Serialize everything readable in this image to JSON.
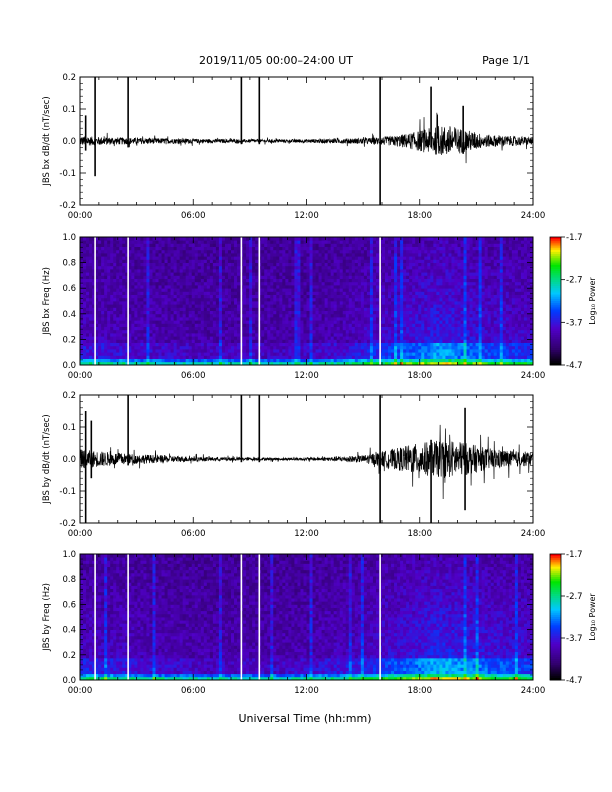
{
  "header": {
    "title": "2019/11/05  00:00–24:00 UT",
    "page": "Page 1/1"
  },
  "xaxis_title": "Universal Time (hh:mm)",
  "chart_data": [
    {
      "type": "line",
      "ylabel": "JBS bx dB/dt (nT/sec)",
      "xlim": [
        0,
        24
      ],
      "ylim": [
        -0.2,
        0.2
      ],
      "x_ticks": [
        "00:00",
        "06:00",
        "12:00",
        "18:00",
        "24:00"
      ],
      "y_ticks": [
        "-0.2",
        "-0.1",
        "0.0",
        "0.1",
        "0.2"
      ],
      "envelope": [
        {
          "t": 0,
          "amp": 0.015
        },
        {
          "t": 1.5,
          "amp": 0.012
        },
        {
          "t": 3,
          "amp": 0.01
        },
        {
          "t": 5,
          "amp": 0.008
        },
        {
          "t": 7,
          "amp": 0.006
        },
        {
          "t": 9,
          "amp": 0.005
        },
        {
          "t": 11,
          "amp": 0.005
        },
        {
          "t": 13,
          "amp": 0.007
        },
        {
          "t": 15,
          "amp": 0.009
        },
        {
          "t": 16.5,
          "amp": 0.015
        },
        {
          "t": 17.5,
          "amp": 0.025
        },
        {
          "t": 18.5,
          "amp": 0.04
        },
        {
          "t": 19.5,
          "amp": 0.05
        },
        {
          "t": 20.5,
          "amp": 0.035
        },
        {
          "t": 21.5,
          "amp": 0.02
        },
        {
          "t": 23,
          "amp": 0.015
        },
        {
          "t": 24,
          "amp": 0.012
        }
      ],
      "spikes": [
        {
          "t": 0.3,
          "min": -0.03,
          "max": 0.08
        },
        {
          "t": 0.8,
          "min": -0.11,
          "max": 0.2
        },
        {
          "t": 2.55,
          "min": -0.02,
          "max": 0.2
        },
        {
          "t": 8.55,
          "min": -0.01,
          "max": 0.2
        },
        {
          "t": 9.5,
          "min": -0.01,
          "max": 0.2
        },
        {
          "t": 15.9,
          "min": -0.2,
          "max": 0.2
        },
        {
          "t": 18.6,
          "min": -0.02,
          "max": 0.17
        },
        {
          "t": 20.3,
          "min": -0.04,
          "max": 0.11
        }
      ]
    },
    {
      "type": "heatmap",
      "ylabel": "JBS bx Freq (Hz)",
      "xlim": [
        0,
        24
      ],
      "ylim": [
        0.0,
        1.0
      ],
      "x_ticks": [
        "00:00",
        "06:00",
        "12:00",
        "18:00",
        "24:00"
      ],
      "y_ticks": [
        "0.0",
        "0.2",
        "0.4",
        "0.6",
        "0.8",
        "1.0"
      ],
      "colorbar": {
        "label": "Log₁₀ Power",
        "min": -4.7,
        "max": -1.7,
        "ticks": [
          "-1.7",
          "-2.7",
          "-3.7",
          "-4.7"
        ]
      },
      "activity": [
        {
          "t": 0,
          "level": 0.35
        },
        {
          "t": 2,
          "level": 0.3
        },
        {
          "t": 4,
          "level": 0.25
        },
        {
          "t": 6,
          "level": 0.2
        },
        {
          "t": 8,
          "level": 0.2
        },
        {
          "t": 10,
          "level": 0.2
        },
        {
          "t": 12,
          "level": 0.22
        },
        {
          "t": 14,
          "level": 0.3
        },
        {
          "t": 16,
          "level": 0.45
        },
        {
          "t": 17,
          "level": 0.55
        },
        {
          "t": 18,
          "level": 0.65
        },
        {
          "t": 19,
          "level": 0.8
        },
        {
          "t": 20,
          "level": 0.7
        },
        {
          "t": 21,
          "level": 0.6
        },
        {
          "t": 22,
          "level": 0.5
        },
        {
          "t": 24,
          "level": 0.45
        }
      ],
      "vertical_lines": [
        0.8,
        2.55,
        8.55,
        9.5,
        15.9
      ]
    },
    {
      "type": "line",
      "ylabel": "JBS by dB/dt (nT/sec)",
      "xlim": [
        0,
        24
      ],
      "ylim": [
        -0.2,
        0.2
      ],
      "x_ticks": [
        "00:00",
        "06:00",
        "12:00",
        "18:00",
        "24:00"
      ],
      "y_ticks": [
        "-0.2",
        "-0.1",
        "0.0",
        "0.1",
        "0.2"
      ],
      "envelope": [
        {
          "t": 0,
          "amp": 0.03
        },
        {
          "t": 1.5,
          "amp": 0.022
        },
        {
          "t": 3,
          "amp": 0.015
        },
        {
          "t": 5,
          "amp": 0.01
        },
        {
          "t": 7,
          "amp": 0.006
        },
        {
          "t": 9,
          "amp": 0.005
        },
        {
          "t": 11,
          "amp": 0.004
        },
        {
          "t": 13,
          "amp": 0.006
        },
        {
          "t": 15,
          "amp": 0.012
        },
        {
          "t": 16.5,
          "amp": 0.03
        },
        {
          "t": 17.5,
          "amp": 0.045
        },
        {
          "t": 18.5,
          "amp": 0.055
        },
        {
          "t": 19.5,
          "amp": 0.06
        },
        {
          "t": 20.5,
          "amp": 0.05
        },
        {
          "t": 21.5,
          "amp": 0.035
        },
        {
          "t": 23,
          "amp": 0.025
        },
        {
          "t": 24,
          "amp": 0.022
        }
      ],
      "spikes": [
        {
          "t": 0.3,
          "min": -0.2,
          "max": 0.15
        },
        {
          "t": 0.6,
          "min": -0.06,
          "max": 0.12
        },
        {
          "t": 2.55,
          "min": -0.02,
          "max": 0.2
        },
        {
          "t": 8.55,
          "min": -0.01,
          "max": 0.2
        },
        {
          "t": 9.5,
          "min": -0.01,
          "max": 0.2
        },
        {
          "t": 15.9,
          "min": -0.2,
          "max": 0.2
        },
        {
          "t": 18.6,
          "min": -0.2,
          "max": 0.06
        },
        {
          "t": 20.4,
          "min": -0.16,
          "max": 0.16
        }
      ]
    },
    {
      "type": "heatmap",
      "ylabel": "JBS by Freq (Hz)",
      "xlim": [
        0,
        24
      ],
      "ylim": [
        0.0,
        1.0
      ],
      "x_ticks": [
        "00:00",
        "06:00",
        "12:00",
        "18:00",
        "24:00"
      ],
      "y_ticks": [
        "0.0",
        "0.2",
        "0.4",
        "0.6",
        "0.8",
        "1.0"
      ],
      "colorbar": {
        "label": "Log₁₀ Power",
        "min": -4.7,
        "max": -1.7,
        "ticks": [
          "-1.7",
          "-2.7",
          "-3.7",
          "-4.7"
        ]
      },
      "activity": [
        {
          "t": 0,
          "level": 0.4
        },
        {
          "t": 2,
          "level": 0.35
        },
        {
          "t": 4,
          "level": 0.28
        },
        {
          "t": 6,
          "level": 0.22
        },
        {
          "t": 8,
          "level": 0.2
        },
        {
          "t": 10,
          "level": 0.2
        },
        {
          "t": 12,
          "level": 0.25
        },
        {
          "t": 14,
          "level": 0.35
        },
        {
          "t": 16,
          "level": 0.5
        },
        {
          "t": 17,
          "level": 0.6
        },
        {
          "t": 18,
          "level": 0.7
        },
        {
          "t": 19,
          "level": 0.85
        },
        {
          "t": 20,
          "level": 0.75
        },
        {
          "t": 21,
          "level": 0.7
        },
        {
          "t": 22,
          "level": 0.6
        },
        {
          "t": 24,
          "level": 0.5
        }
      ],
      "vertical_lines": [
        0.8,
        2.55,
        8.55,
        9.5,
        15.9
      ]
    }
  ]
}
